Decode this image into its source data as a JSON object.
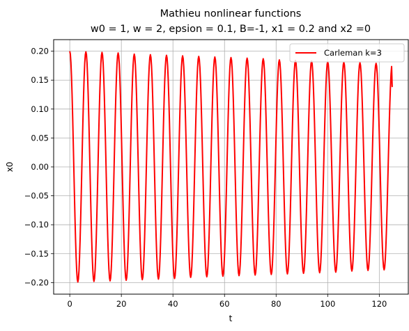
{
  "chart_data": {
    "type": "line",
    "title_lines": [
      "Mathieu nonlinear functions",
      "w0 = 1, w = 2, epsion = 0.1, B=-1, x1 = 0.2 and x2 =0"
    ],
    "xlabel": "t",
    "ylabel": "x0",
    "xlim": [
      -6.25,
      131.25
    ],
    "ylim": [
      -0.22,
      0.22
    ],
    "xticks": [
      0,
      20,
      40,
      60,
      80,
      100,
      120
    ],
    "xtick_labels": [
      "0",
      "20",
      "40",
      "60",
      "80",
      "100",
      "120"
    ],
    "yticks": [
      0.2,
      0.15,
      0.1,
      0.05,
      0.0,
      -0.05,
      -0.1,
      -0.15,
      -0.2
    ],
    "ytick_labels": [
      "0.20",
      "0.15",
      "0.10",
      "0.05",
      "0.00",
      "−0.05",
      "−0.10",
      "−0.15",
      "−0.20"
    ],
    "grid": true,
    "legend_position": "top-right",
    "series": [
      {
        "name": "Carleman k=3",
        "color": "#ff0000",
        "t_range": [
          0,
          125
        ],
        "peak_times": [
          0,
          6.25,
          12.5,
          18.75,
          25,
          31.25,
          37.5,
          43.75,
          50,
          56.25,
          62.5,
          68.75,
          75,
          81.25,
          87.5,
          93.75,
          100,
          106.25,
          112.5,
          118.75
        ],
        "peak_values": [
          0.2,
          0.199,
          0.198,
          0.197,
          0.195,
          0.194,
          0.193,
          0.192,
          0.191,
          0.19,
          0.189,
          0.188,
          0.187,
          0.185,
          0.184,
          0.183,
          0.182,
          0.181,
          0.18,
          0.179
        ],
        "trough_times": [
          3.125,
          9.375,
          15.625,
          21.875,
          28.125,
          34.375,
          40.625,
          46.875,
          53.125,
          59.375,
          65.625,
          71.875,
          78.125,
          84.375,
          90.625,
          96.875,
          103.125,
          109.375,
          115.625,
          121.875
        ],
        "trough_values": [
          -0.199,
          -0.198,
          -0.197,
          -0.196,
          -0.195,
          -0.194,
          -0.193,
          -0.191,
          -0.19,
          -0.189,
          -0.188,
          -0.187,
          -0.186,
          -0.185,
          -0.184,
          -0.183,
          -0.182,
          -0.18,
          -0.179,
          -0.178
        ],
        "end_value": 0.138
      }
    ]
  }
}
